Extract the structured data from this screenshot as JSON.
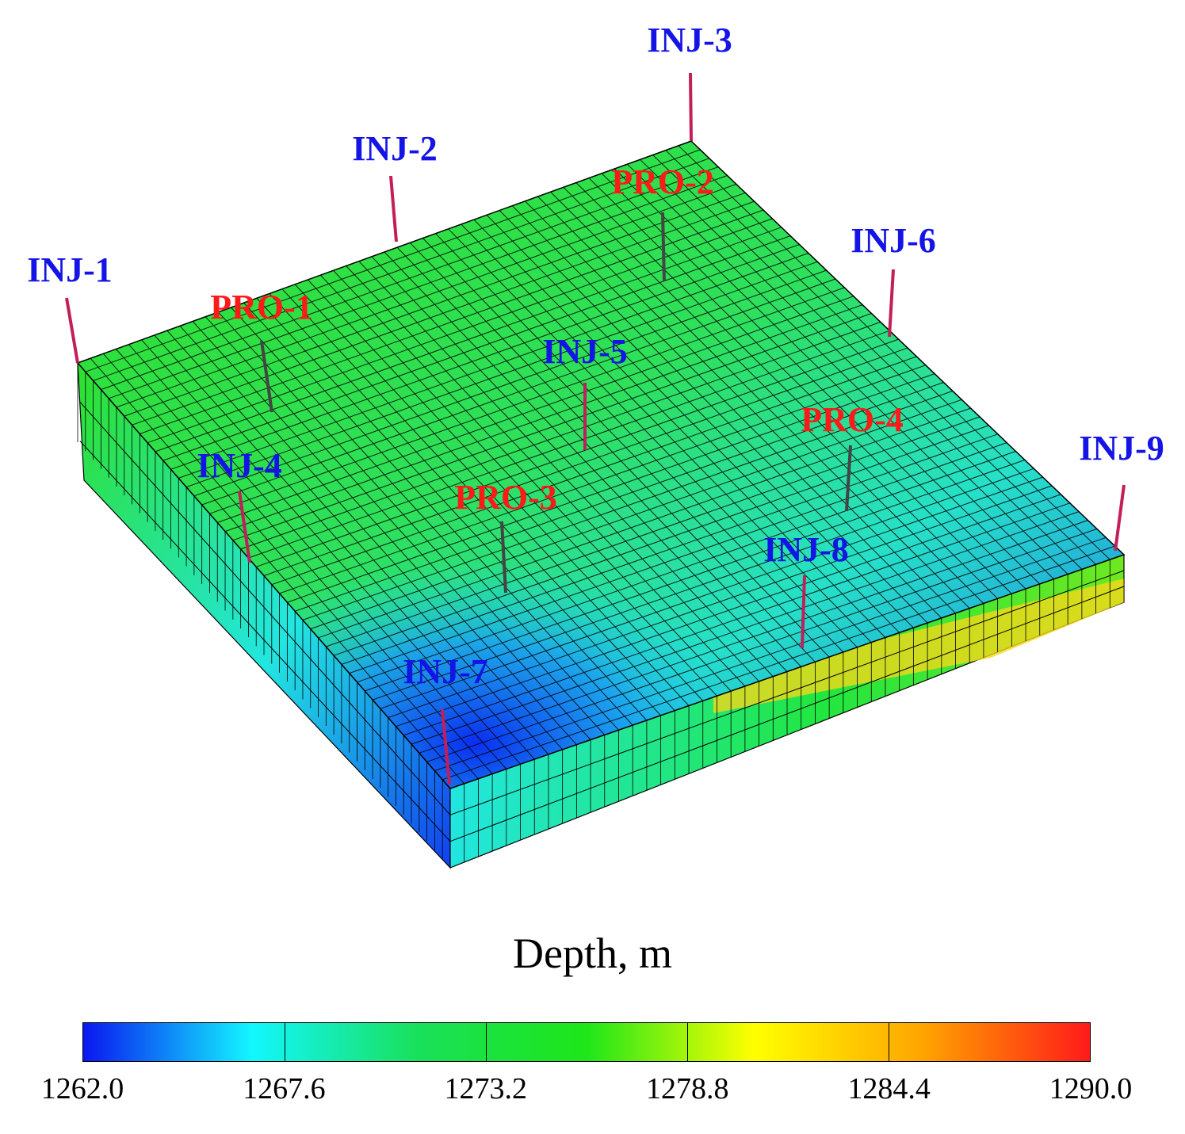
{
  "title": "Depth, m",
  "colorbar": {
    "min": 1262.0,
    "max": 1290.0,
    "ticks": [
      "1262.0",
      "1267.6",
      "1273.2",
      "1278.8",
      "1284.4",
      "1290.0"
    ],
    "colors": [
      "#0a17f0",
      "#13f6ff",
      "#19e05a",
      "#1ee619",
      "#ffff00",
      "#ffa500",
      "#ff1a1a"
    ]
  },
  "grid": {
    "nx": 48,
    "ny": 48,
    "layers": 3
  },
  "wells": {
    "injectors": [
      "INJ-1",
      "INJ-2",
      "INJ-3",
      "INJ-4",
      "INJ-5",
      "INJ-6",
      "INJ-7",
      "INJ-8",
      "INJ-9"
    ],
    "producers": [
      "PRO-1",
      "PRO-2",
      "PRO-3",
      "PRO-4"
    ],
    "injector_label_color": "#1414e6",
    "producer_label_color": "#ff1a1a",
    "well_line_color": "#c21e5a"
  }
}
